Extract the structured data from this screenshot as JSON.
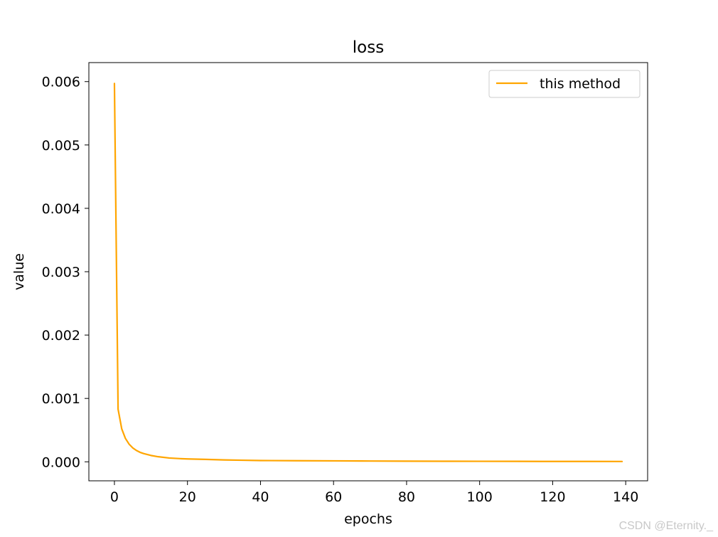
{
  "chart_data": {
    "type": "line",
    "title": "loss",
    "xlabel": "epochs",
    "ylabel": "value",
    "xlim": [
      -7,
      146
    ],
    "ylim": [
      -0.0003,
      0.0063
    ],
    "xticks": [
      0,
      20,
      40,
      60,
      80,
      100,
      120,
      140
    ],
    "xtick_labels": [
      "0",
      "20",
      "40",
      "60",
      "80",
      "100",
      "120",
      "140"
    ],
    "yticks": [
      0.0,
      0.001,
      0.002,
      0.003,
      0.004,
      0.005,
      0.006
    ],
    "ytick_labels": [
      "0.000",
      "0.001",
      "0.002",
      "0.003",
      "0.004",
      "0.005",
      "0.006"
    ],
    "grid": false,
    "legend_position": "top-right",
    "series": [
      {
        "name": "this method",
        "color": "#ffa500",
        "x": [
          0,
          1,
          2,
          3,
          4,
          5,
          6,
          7,
          8,
          10,
          12,
          15,
          18,
          20,
          25,
          30,
          35,
          40,
          50,
          60,
          70,
          80,
          90,
          100,
          110,
          120,
          130,
          139
        ],
        "y": [
          0.00597,
          0.00083,
          0.00052,
          0.00037,
          0.00028,
          0.00022,
          0.00018,
          0.00015,
          0.00013,
          0.0001,
          8e-05,
          6e-05,
          5e-05,
          4.5e-05,
          3.8e-05,
          3e-05,
          2.5e-05,
          2e-05,
          1.7e-05,
          1.5e-05,
          1.2e-05,
          1e-05,
          9e-06,
          8e-06,
          7e-06,
          6e-06,
          6e-06,
          5e-06
        ]
      }
    ]
  },
  "watermark": "CSDN @Eternity._"
}
